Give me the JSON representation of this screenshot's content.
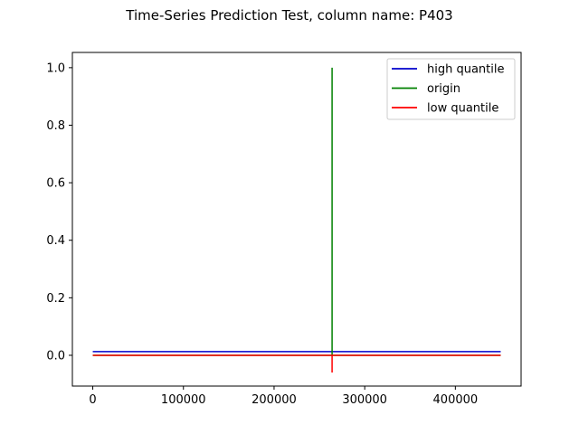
{
  "chart_data": {
    "type": "line",
    "title": "Time-Series Prediction Test, column name: P403",
    "xlabel": "",
    "ylabel": "",
    "xlim": [
      -22500,
      472500
    ],
    "ylim": [
      -0.107,
      1.053
    ],
    "xticks": [
      0,
      100000,
      200000,
      300000,
      400000
    ],
    "yticks": [
      0.0,
      0.2,
      0.4,
      0.6,
      0.8,
      1.0
    ],
    "xtick_labels": [
      "0",
      "100000",
      "200000",
      "300000",
      "400000"
    ],
    "ytick_labels": [
      "0.0",
      "0.2",
      "0.4",
      "0.6",
      "0.8",
      "1.0"
    ],
    "grid": false,
    "legend_position": "top-right",
    "series": [
      {
        "name": "high quantile",
        "color": "#0000cc",
        "x": [
          0,
          450000
        ],
        "y": [
          0.013,
          0.013
        ]
      },
      {
        "name": "origin",
        "color": "#008000",
        "x": [
          0,
          263999,
          264000,
          264001,
          450000
        ],
        "y": [
          0.0,
          0.0,
          1.0,
          0.0,
          0.0
        ]
      },
      {
        "name": "low quantile",
        "color": "#ff0000",
        "x": [
          0,
          263999,
          264000,
          264001,
          450000
        ],
        "y": [
          0.0,
          0.0,
          -0.06,
          0.0,
          0.0
        ]
      }
    ]
  }
}
